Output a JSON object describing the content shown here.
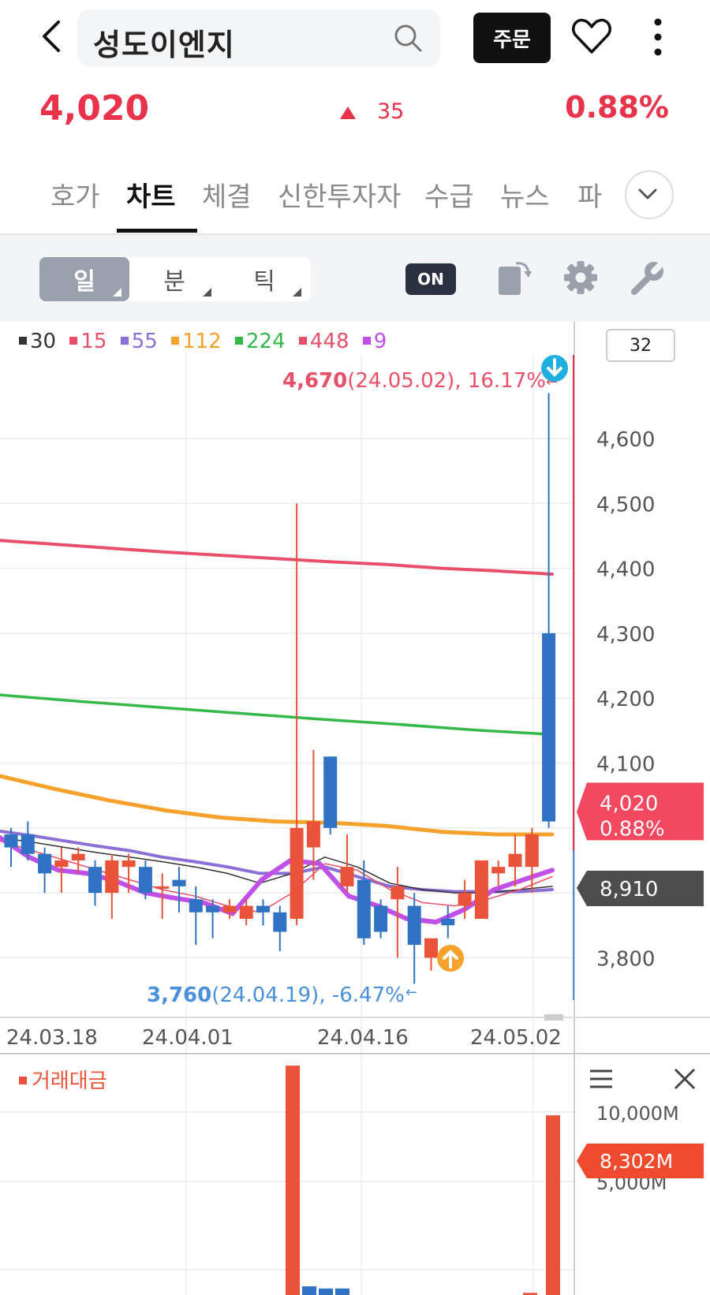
{
  "header": {
    "stock_name": "성도이엔지",
    "order_label": "주문"
  },
  "quote": {
    "price": "4,020",
    "change": "35",
    "change_pct": "0.88%",
    "direction": "up",
    "up_color": "#e8334a"
  },
  "tabs": [
    {
      "label": "호가",
      "active": false
    },
    {
      "label": "차트",
      "active": true
    },
    {
      "label": "체결",
      "active": false
    },
    {
      "label": "신한투자자",
      "active": false
    },
    {
      "label": "수급",
      "active": false
    },
    {
      "label": "뉴스",
      "active": false
    },
    {
      "label": "파",
      "active": false
    }
  ],
  "toolbar": {
    "periods": [
      {
        "label": "일",
        "active": true
      },
      {
        "label": "분",
        "active": false
      },
      {
        "label": "틱",
        "active": false
      }
    ],
    "toggle_label": "ON",
    "icons": [
      "rotate-icon",
      "settings-gear-icon",
      "wrench-icon"
    ]
  },
  "legend": {
    "items": [
      {
        "label": "30",
        "color": "#333333"
      },
      {
        "label": "15",
        "color": "#e8506a"
      },
      {
        "label": "55",
        "color": "#8b6fd6"
      },
      {
        "label": "112",
        "color": "#f5a12c"
      },
      {
        "label": "224",
        "color": "#35b84a"
      },
      {
        "label": "448",
        "color": "#e8506a"
      },
      {
        "label": "9",
        "color": "#c050e8"
      }
    ],
    "count": "32"
  },
  "chart_data": {
    "type": "candlestick",
    "y_ticks": [
      "4,600",
      "4,500",
      "4,400",
      "4,300",
      "4,200",
      "4,100",
      "3,800"
    ],
    "ylim": [
      3700,
      4780
    ],
    "x_ticks": [
      "24.03.18",
      "24.04.01",
      "24.04.16",
      "24.05.02"
    ],
    "current_price_label": {
      "price": "4,020",
      "pct": "0.88%"
    },
    "secondary_label": "8,910",
    "high_annotation": {
      "price": "4,670",
      "detail": "(24.05.02), 16.17%"
    },
    "low_annotation": {
      "price": "3,760",
      "detail": "(24.04.19), -6.47%"
    },
    "candles": [
      [
        3990,
        4000,
        3940,
        3970
      ],
      [
        3990,
        4010,
        3950,
        3960
      ],
      [
        3960,
        3970,
        3900,
        3930
      ],
      [
        3940,
        3970,
        3900,
        3950
      ],
      [
        3950,
        3970,
        3930,
        3960
      ],
      [
        3940,
        3950,
        3880,
        3900
      ],
      [
        3900,
        3960,
        3860,
        3950
      ],
      [
        3940,
        3960,
        3900,
        3950
      ],
      [
        3940,
        3950,
        3890,
        3900
      ],
      [
        3910,
        3930,
        3860,
        3910
      ],
      [
        3920,
        3940,
        3870,
        3910
      ],
      [
        3890,
        3910,
        3820,
        3870
      ],
      [
        3880,
        3890,
        3830,
        3870
      ],
      [
        3870,
        3890,
        3860,
        3880
      ],
      [
        3860,
        3890,
        3850,
        3880
      ],
      [
        3880,
        3890,
        3850,
        3870
      ],
      [
        3870,
        3880,
        3810,
        3840
      ],
      [
        3860,
        4500,
        3850,
        4000
      ],
      [
        3970,
        4120,
        3920,
        4010
      ],
      [
        4110,
        4110,
        3990,
        4000
      ],
      [
        3910,
        3990,
        3900,
        3940
      ],
      [
        3920,
        3950,
        3820,
        3830
      ],
      [
        3880,
        3890,
        3830,
        3840
      ],
      [
        3890,
        3940,
        3800,
        3910
      ],
      [
        3880,
        3900,
        3760,
        3820
      ],
      [
        3800,
        3830,
        3780,
        3830
      ],
      [
        3860,
        3880,
        3830,
        3850
      ],
      [
        3880,
        3920,
        3860,
        3900
      ],
      [
        3860,
        3950,
        3860,
        3950
      ],
      [
        3930,
        3950,
        3910,
        3940
      ],
      [
        3940,
        3990,
        3910,
        3960
      ],
      [
        3940,
        4000,
        3900,
        3990
      ],
      [
        4300,
        4670,
        4000,
        4010
      ]
    ],
    "ma_lines": [
      {
        "label": "448",
        "values": [
          4443,
          4437,
          4431,
          4425,
          4420,
          4415,
          4410,
          4406,
          4400,
          4396,
          4391
        ]
      },
      {
        "label": "224",
        "values": [
          4205,
          4195,
          4186,
          4177,
          4168,
          4160,
          4151,
          4144
        ]
      },
      {
        "label": "112",
        "values": [
          4080,
          4060,
          4042,
          4027,
          4016,
          4010,
          4008,
          4003,
          3994,
          3990,
          3990
        ]
      },
      {
        "label": "55",
        "values": [
          3995,
          3988,
          3980,
          3972,
          3965,
          3955,
          3948,
          3940,
          3930,
          3930,
          3940,
          3925,
          3910,
          3905,
          3902,
          3902,
          3902,
          3905
        ]
      },
      {
        "label": "30",
        "values": [
          3985,
          3978,
          3970,
          3962,
          3955,
          3948,
          3940,
          3930,
          3915,
          3930,
          3955,
          3940,
          3915,
          3905,
          3900,
          3900,
          3905,
          3910
        ]
      },
      {
        "label": "15",
        "values": [
          3980,
          3965,
          3950,
          3935,
          3920,
          3905,
          3895,
          3880,
          3870,
          3900,
          3945,
          3935,
          3905,
          3885,
          3880,
          3890,
          3905,
          3925
        ]
      },
      {
        "label": "9",
        "values": [
          3985,
          3955,
          3935,
          3930,
          3918,
          3900,
          3892,
          3885,
          3868,
          3920,
          3950,
          3945,
          3895,
          3880,
          3860,
          3855,
          3875,
          3905,
          3920,
          3935
        ]
      }
    ],
    "volume": {
      "legend": "거래대금",
      "y_ticks": [
        "10,000M",
        "5,000M"
      ],
      "current_label": "8,302M",
      "values_m": [
        10600,
        400,
        300,
        300,
        100,
        8302
      ]
    }
  }
}
